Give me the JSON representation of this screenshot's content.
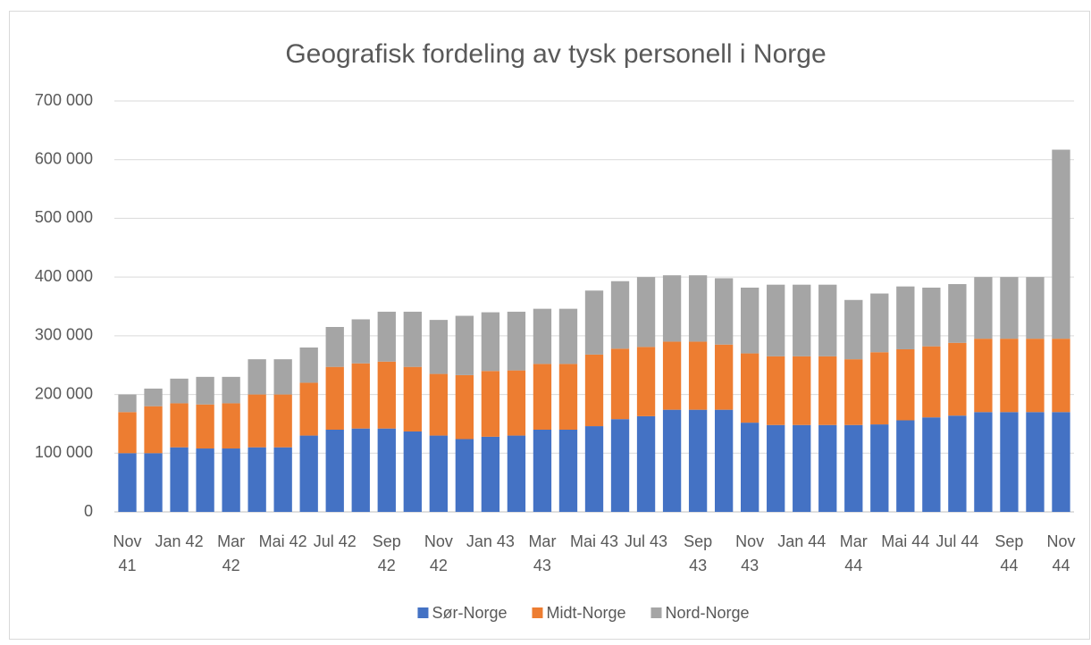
{
  "chart_data": {
    "type": "bar",
    "stacked": true,
    "title": "Geografisk fordeling av tysk personell i Norge",
    "categories": [
      "Nov 41",
      null,
      "Jan 42",
      null,
      "Mar 42",
      null,
      "Mai 42",
      null,
      "Jul 42",
      null,
      "Sep 42",
      null,
      "Nov 42",
      null,
      "Jan 43",
      null,
      "Mar 43",
      null,
      "Mai 43",
      null,
      "Jul 43",
      null,
      "Sep 43",
      null,
      "Nov 43",
      null,
      "Jan 44",
      null,
      "Mar 44",
      null,
      "Mai 44",
      null,
      "Jul 44",
      null,
      "Sep 44",
      null,
      "Nov 44"
    ],
    "series": [
      {
        "name": "Sør-Norge",
        "color": "#4472c4",
        "values": [
          100000,
          100000,
          110000,
          108000,
          108000,
          110000,
          110000,
          130000,
          140000,
          142000,
          142000,
          137000,
          130000,
          124000,
          128000,
          130000,
          140000,
          140000,
          146000,
          158000,
          163000,
          174000,
          174000,
          174000,
          152000,
          148000,
          148000,
          148000,
          148000,
          149000,
          156000,
          161000,
          164000,
          170000,
          170000,
          170000,
          170000
        ]
      },
      {
        "name": "Midt-Norge",
        "color": "#ed7d31",
        "values": [
          70000,
          80000,
          75000,
          75000,
          77000,
          90000,
          90000,
          90000,
          107000,
          111000,
          114000,
          110000,
          105000,
          109000,
          112000,
          111000,
          112000,
          112000,
          122000,
          120000,
          118000,
          116000,
          116000,
          111000,
          118000,
          117000,
          117000,
          117000,
          112000,
          123000,
          121000,
          121000,
          124000,
          125000,
          125000,
          125000,
          125000
        ]
      },
      {
        "name": "Nord-Norge",
        "color": "#a5a5a5",
        "values": [
          30000,
          30000,
          42000,
          47000,
          45000,
          60000,
          60000,
          60000,
          68000,
          75000,
          85000,
          94000,
          92000,
          101000,
          100000,
          100000,
          94000,
          94000,
          109000,
          115000,
          119000,
          113000,
          113000,
          113000,
          112000,
          122000,
          122000,
          122000,
          101000,
          100000,
          107000,
          100000,
          100000,
          105000,
          105000,
          105000,
          322000
        ]
      }
    ],
    "ylim": [
      0,
      700000
    ],
    "yticks": [
      0,
      {
        "value": 100000,
        "label": "100 000"
      },
      {
        "value": 200000,
        "label": "200 000"
      },
      {
        "value": 300000,
        "label": "300 000"
      },
      {
        "value": 400000,
        "label": "400 000"
      },
      {
        "value": 500000,
        "label": "500 000"
      },
      {
        "value": 600000,
        "label": "600 000"
      },
      {
        "value": 700000,
        "label": "700 000"
      }
    ],
    "grid": true,
    "legend": "bottom"
  }
}
